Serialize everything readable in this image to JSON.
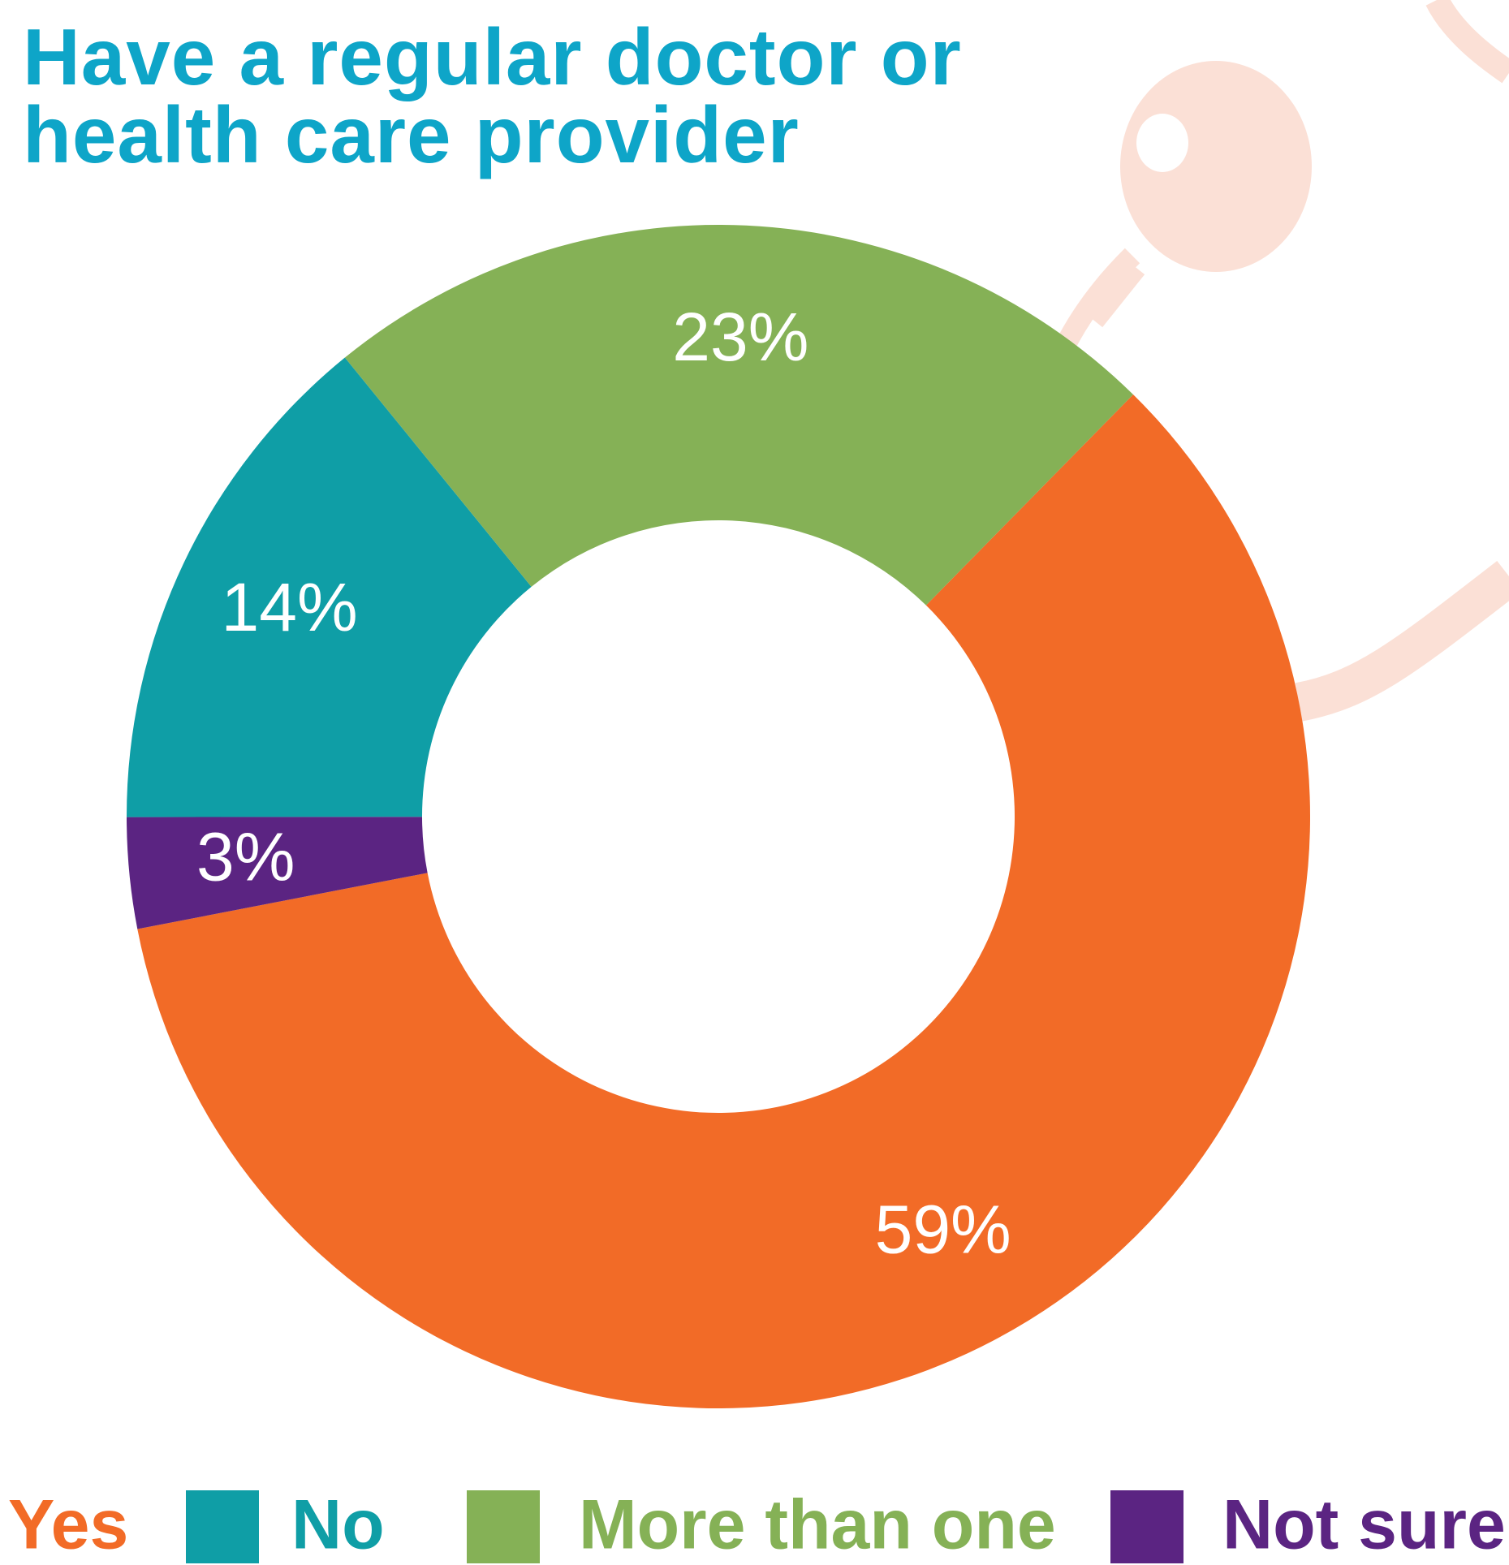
{
  "chart_data": {
    "type": "donut",
    "title": "Have a regular doctor or health care provider",
    "categories": [
      "Yes",
      "No",
      "More than one",
      "Not sure"
    ],
    "values": [
      59,
      14,
      23,
      3
    ],
    "value_labels": [
      "59%",
      "14%",
      "23%",
      "3%"
    ],
    "colors": [
      "#f26b27",
      "#0f9ea6",
      "#85b156",
      "#5b2482"
    ]
  }
}
